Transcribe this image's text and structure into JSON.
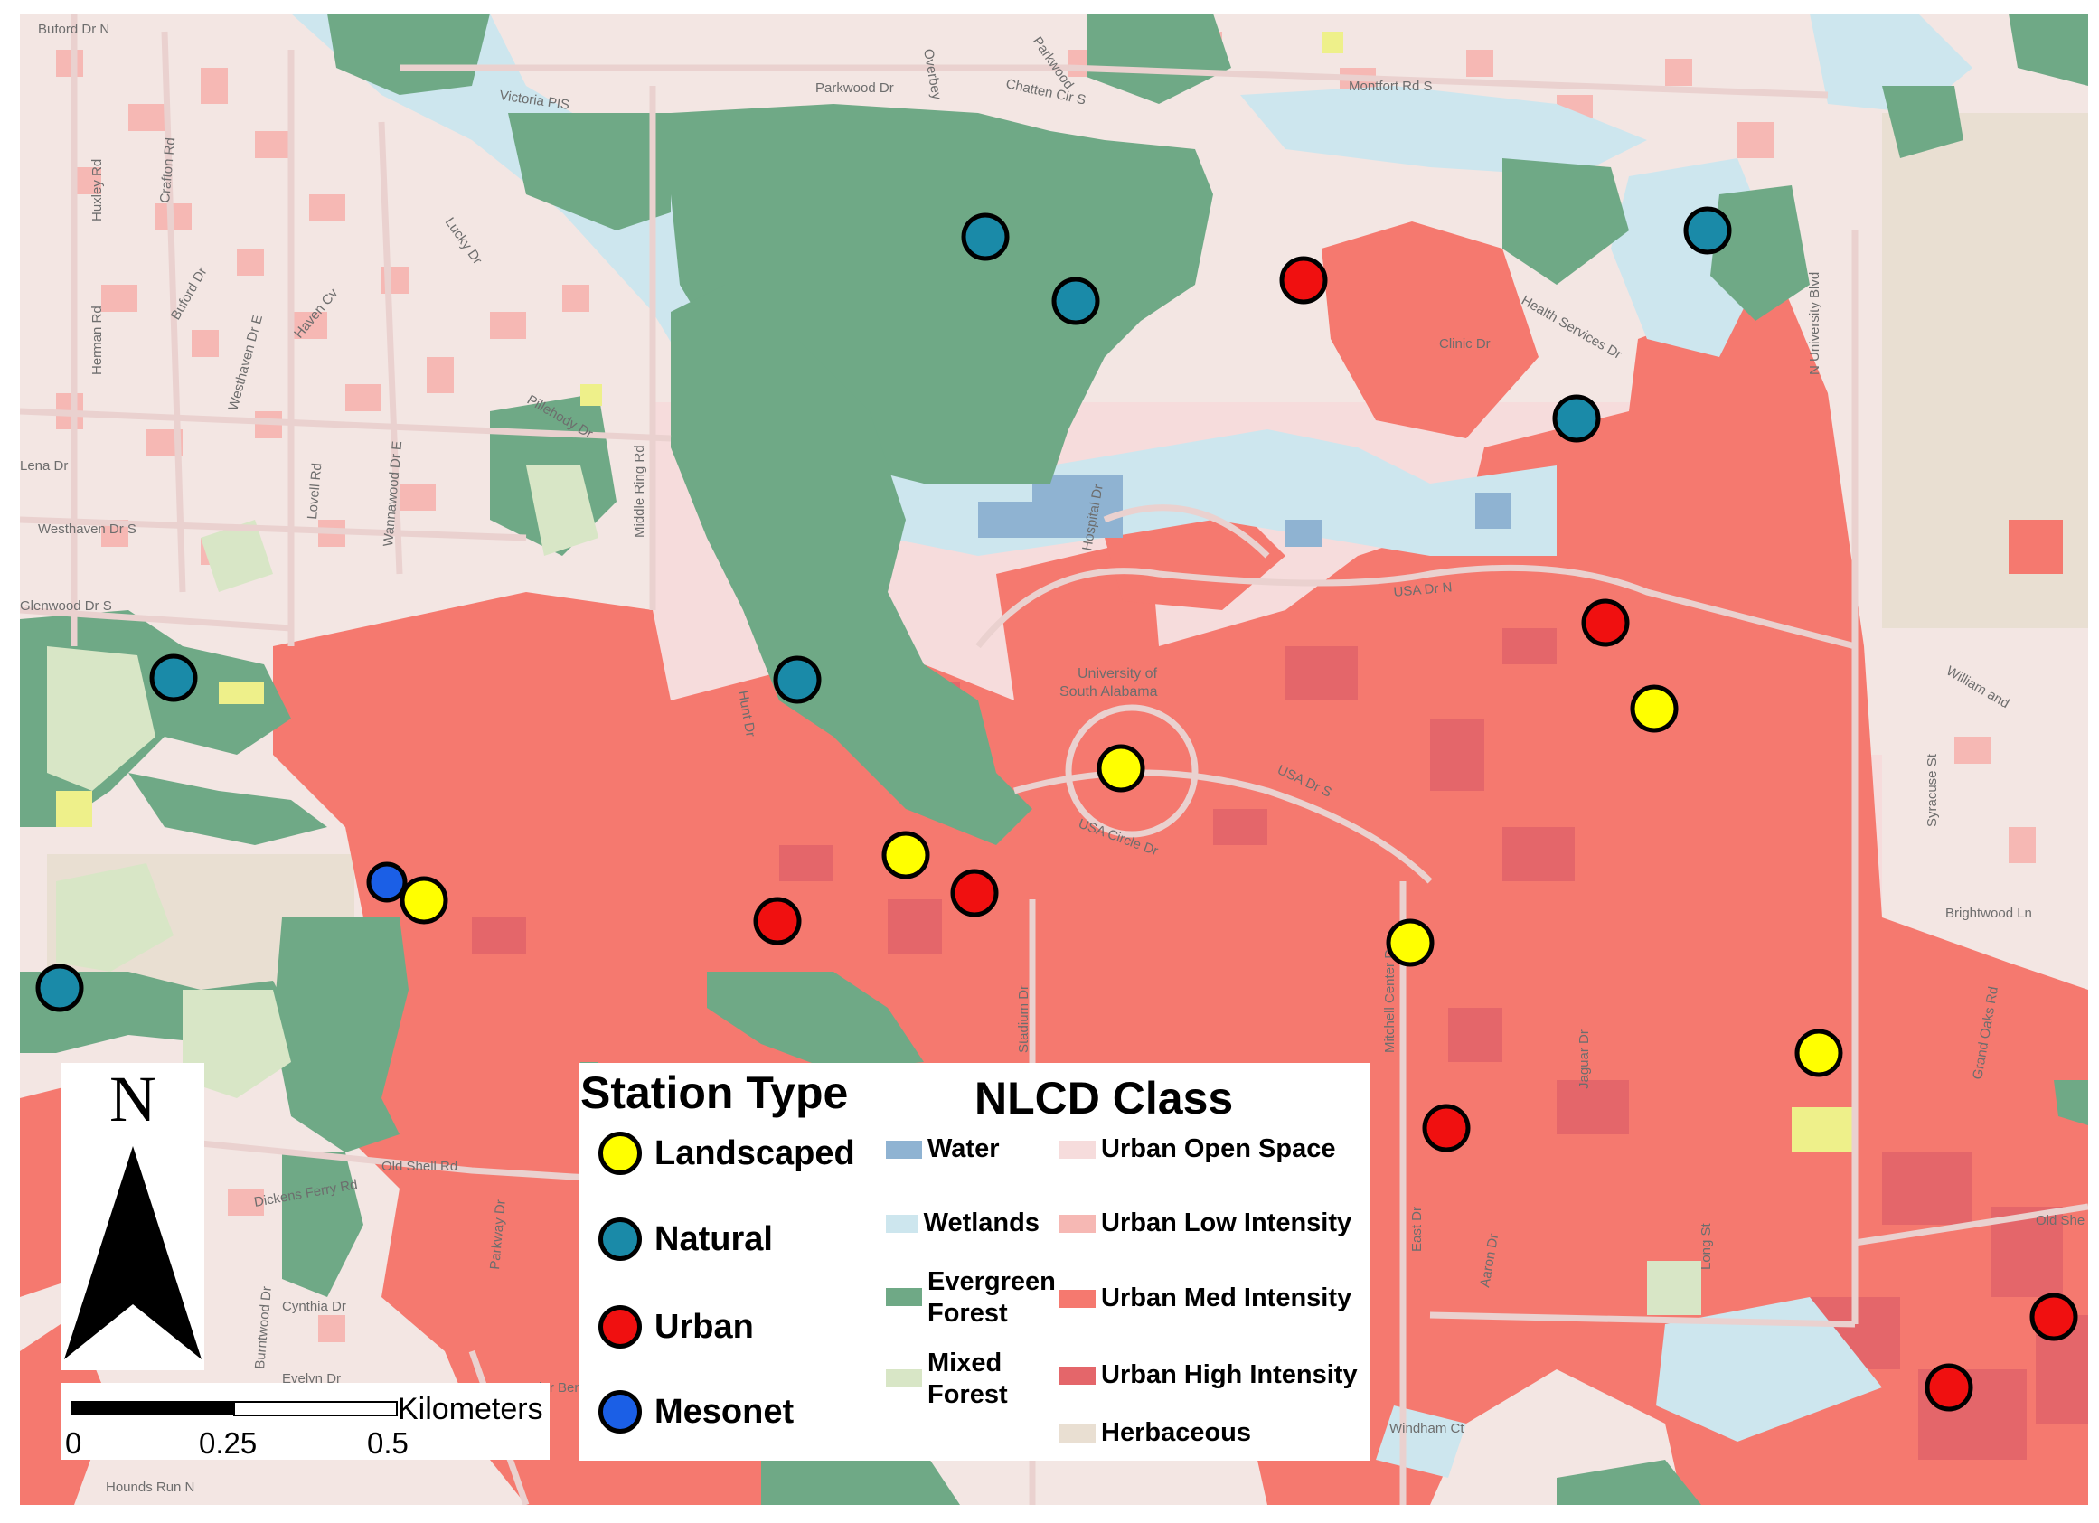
{
  "colors": {
    "background": "#f3e6e3",
    "water": "#8fb3d2",
    "wetlands": "#cde6ee",
    "evergreen_forest": "#6fa986",
    "mixed_forest": "#d8e6c6",
    "urban_open_space": "#f6dcdc",
    "urban_low_intensity": "#f6b8b4",
    "urban_med_intensity": "#f5796f",
    "urban_high_intensity": "#e4666a",
    "herbaceous": "#e9dfd2",
    "landscaped": "#ffff00",
    "natural": "#1a8aa8",
    "urban": "#f01010",
    "mesonet": "#1b5fe6"
  },
  "map": {
    "street_labels": [
      "Buford Dr N",
      "Victoria PIS",
      "Parkwood Dr",
      "Chatten Cir S",
      "Overbey",
      "Parkwood",
      "Montfort Rd S",
      "Huxley Rd",
      "Crafton Rd",
      "Buford Dr",
      "Westhaven Dr E",
      "Haven Cv",
      "Herman Rd",
      "Lucky Dr",
      "Pillehody Dr",
      "Wannawood Dr E",
      "Lovell Rd",
      "Middle Ring Rd",
      "Clinic Dr",
      "Health Services Dr",
      "N University Blvd",
      "Westhaven Dr S",
      "Hospital Dr",
      "USA Dr N",
      "Hunt Dr",
      "USA Dr S",
      "USA Circle Dr",
      "Stadium Dr",
      "Mitchell Center Dr",
      "Jaguar Dr",
      "Syracuse St",
      "William and",
      "Brightwood Ln",
      "Grand Oaks Rd",
      "Old Shell Rd",
      "Dickens Ferry Rd",
      "Cynthia Dr",
      "Evelyn Dr",
      "Burntwood Dr",
      "Parkway Dr",
      "Cedar Bend",
      "East Dr",
      "Aaron Dr",
      "Long St",
      "Old She",
      "Windham Ct",
      "Hounds Run N",
      "Glenwood Dr S",
      "Lena Dr"
    ],
    "campus_label": "University of South Alabama"
  },
  "north_arrow": {
    "letter": "N"
  },
  "scale_bar": {
    "ticks": [
      "0",
      "0.25",
      "0.5"
    ],
    "unit": "Kilometers"
  },
  "legend": {
    "station_type": {
      "title": "Station Type",
      "items": [
        {
          "label": "Landscaped",
          "color": "#ffff00"
        },
        {
          "label": "Natural",
          "color": "#1a8aa8"
        },
        {
          "label": "Urban",
          "color": "#f01010"
        },
        {
          "label": "Mesonet",
          "color": "#1b5fe6"
        }
      ]
    },
    "nlcd_class": {
      "title": "NLCD Class",
      "items": [
        {
          "label": "Water",
          "color": "#8fb3d2"
        },
        {
          "label": "Wetlands",
          "color": "#cde6ee"
        },
        {
          "label": "Evergreen Forest",
          "color": "#6fa986"
        },
        {
          "label": "Mixed Forest",
          "color": "#d8e6c6"
        },
        {
          "label": "Urban Open Space",
          "color": "#f6dcdc"
        },
        {
          "label": "Urban Low Intensity",
          "color": "#f6b8b4"
        },
        {
          "label": "Urban Med Intensity",
          "color": "#f5796f"
        },
        {
          "label": "Urban High Intensity",
          "color": "#e4666a"
        },
        {
          "label": "Herbaceous",
          "color": "#e9dfd2"
        }
      ]
    }
  },
  "stations": [
    {
      "type": "natural"
    },
    {
      "type": "natural"
    },
    {
      "type": "natural"
    },
    {
      "type": "natural"
    },
    {
      "type": "natural"
    },
    {
      "type": "natural"
    },
    {
      "type": "natural"
    },
    {
      "type": "urban"
    },
    {
      "type": "urban"
    },
    {
      "type": "urban"
    },
    {
      "type": "urban"
    },
    {
      "type": "urban"
    },
    {
      "type": "urban"
    },
    {
      "type": "urban"
    },
    {
      "type": "landscaped"
    },
    {
      "type": "landscaped"
    },
    {
      "type": "landscaped"
    },
    {
      "type": "landscaped"
    },
    {
      "type": "landscaped"
    },
    {
      "type": "landscaped"
    },
    {
      "type": "mesonet"
    }
  ]
}
